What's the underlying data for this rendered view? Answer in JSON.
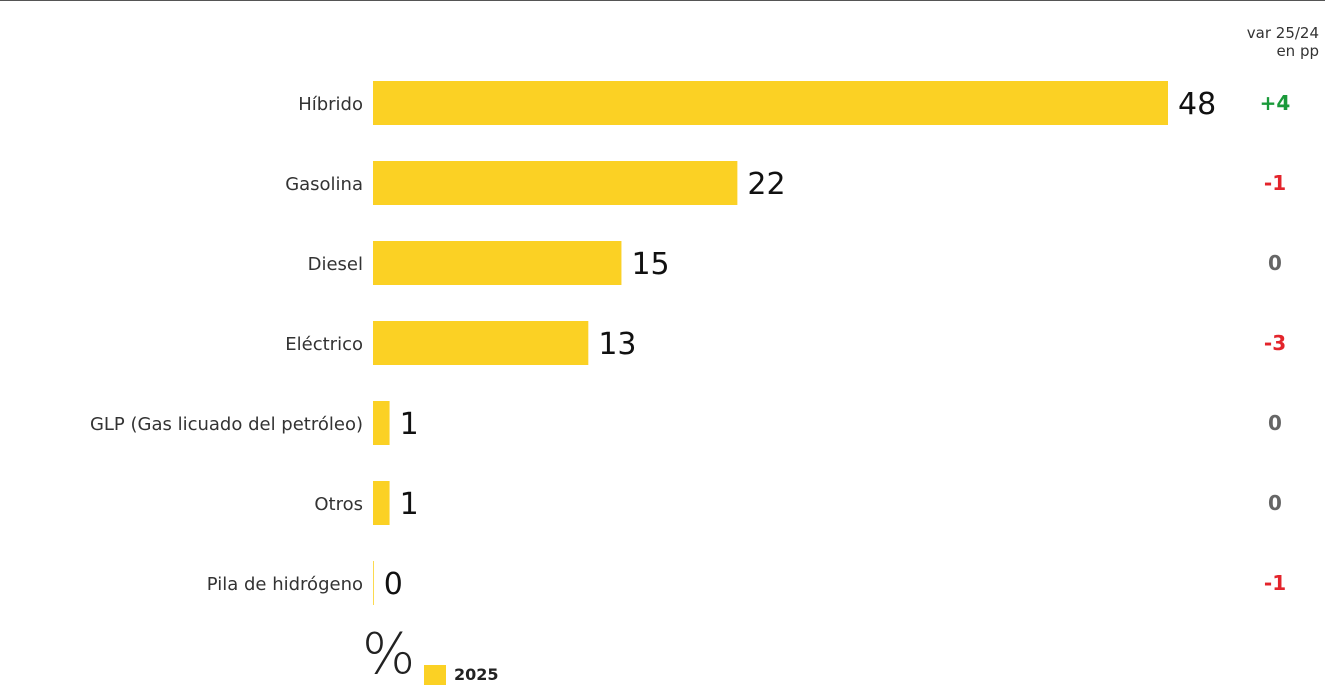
{
  "colors": {
    "bar": "#fbd124",
    "positive": "#1a9a3a",
    "negative": "#e3242b",
    "neutral": "#666666"
  },
  "variation_header": [
    "var 25/24",
    "en pp"
  ],
  "chart_data": {
    "type": "bar",
    "orientation": "horizontal",
    "categories": [
      "Híbrido",
      "Gasolina",
      "Diesel",
      "Eléctrico",
      "GLP (Gas licuado del petróleo)",
      "Otros",
      "Pila de hidrógeno"
    ],
    "series": [
      {
        "name": "2025",
        "values": [
          48,
          22,
          15,
          13,
          1,
          1,
          0
        ]
      }
    ],
    "data_labels": [
      "48",
      "22",
      "15",
      "13",
      "1",
      "1",
      "0"
    ],
    "variation": [
      "+4",
      "-1",
      "0",
      "-3",
      "0",
      "0",
      "-1"
    ],
    "variation_sign": [
      "positive",
      "negative",
      "neutral",
      "negative",
      "neutral",
      "neutral",
      "negative"
    ],
    "unit": "%",
    "xlim": [
      0,
      48
    ],
    "grid": false,
    "legend_position": "bottom-left"
  }
}
